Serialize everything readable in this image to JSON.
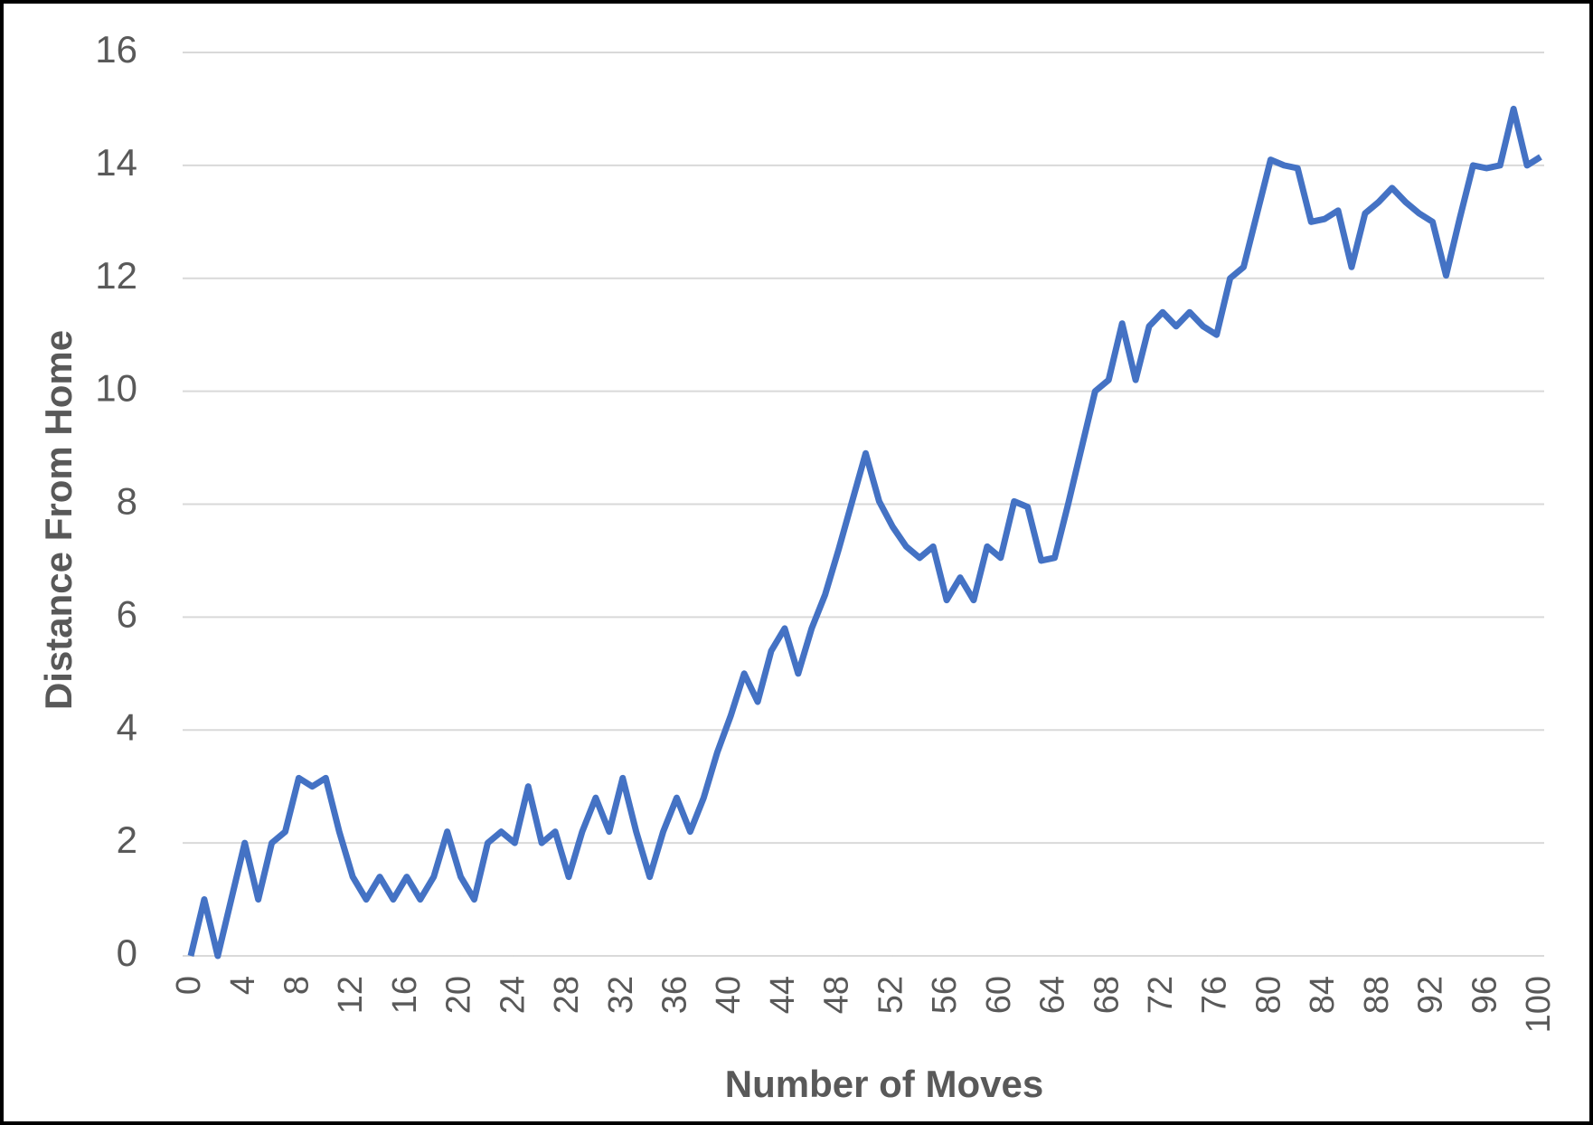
{
  "chart_data": {
    "type": "line",
    "x_label": "Number of Moves",
    "y_label": "Distance From Home",
    "x": [
      0,
      1,
      2,
      3,
      4,
      5,
      6,
      7,
      8,
      9,
      10,
      11,
      12,
      13,
      14,
      15,
      16,
      17,
      18,
      19,
      20,
      21,
      22,
      23,
      24,
      25,
      26,
      27,
      28,
      29,
      30,
      31,
      32,
      33,
      34,
      35,
      36,
      37,
      38,
      39,
      40,
      41,
      42,
      43,
      44,
      45,
      46,
      47,
      48,
      49,
      50,
      51,
      52,
      53,
      54,
      55,
      56,
      57,
      58,
      59,
      60,
      61,
      62,
      63,
      64,
      65,
      66,
      67,
      68,
      69,
      70,
      71,
      72,
      73,
      74,
      75,
      76,
      77,
      78,
      79,
      80,
      81,
      82,
      83,
      84,
      85,
      86,
      87,
      88,
      89,
      90,
      91,
      92,
      93,
      94,
      95,
      96,
      97,
      98,
      99,
      100
    ],
    "series": [
      {
        "name": "Distance From Home",
        "color": "#4472c4",
        "values": [
          0,
          1,
          0,
          1,
          2,
          1,
          2,
          2.2,
          3.15,
          3,
          3.15,
          2.2,
          1.4,
          1,
          1.4,
          1,
          1.4,
          1,
          1.4,
          2.2,
          1.4,
          1,
          2,
          2.2,
          2,
          3,
          2,
          2.2,
          1.4,
          2.2,
          2.8,
          2.2,
          3.15,
          2.2,
          1.4,
          2.2,
          2.8,
          2.2,
          2.8,
          3.6,
          4.25,
          5,
          4.5,
          5.4,
          5.8,
          5,
          5.8,
          6.4,
          7.2,
          8.05,
          8.9,
          8.05,
          7.6,
          7.25,
          7.05,
          7.25,
          6.3,
          6.7,
          6.3,
          7.25,
          7.05,
          8.05,
          7.95,
          7,
          7.05,
          8,
          9,
          10,
          10.2,
          11.2,
          10.2,
          11.15,
          11.4,
          11.15,
          11.4,
          11.15,
          11,
          12,
          12.2,
          13.15,
          14.1,
          14,
          13.95,
          13,
          13.05,
          13.2,
          12.2,
          13.15,
          13.35,
          13.6,
          13.35,
          13.15,
          13,
          12.05,
          13.05,
          14,
          13.95,
          14,
          15,
          14,
          14.15
        ]
      }
    ],
    "xlim": [
      0,
      100
    ],
    "xticks": [
      0,
      4,
      8,
      12,
      16,
      20,
      24,
      28,
      32,
      36,
      40,
      44,
      48,
      52,
      56,
      60,
      64,
      68,
      72,
      76,
      80,
      84,
      88,
      92,
      96,
      100
    ],
    "ylim": [
      0,
      16
    ],
    "yticks": [
      0,
      2,
      4,
      6,
      8,
      10,
      12,
      14,
      16
    ],
    "grid": true
  }
}
